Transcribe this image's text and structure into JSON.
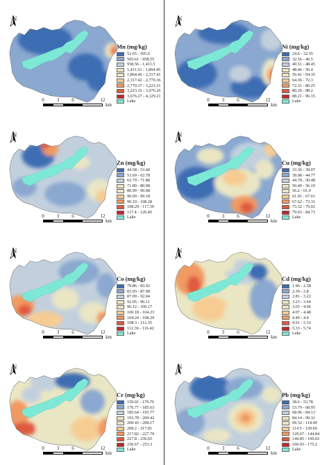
{
  "north_label": "N",
  "scale": {
    "ticks": [
      "0",
      "3",
      "6",
      "12"
    ],
    "unit": "km"
  },
  "lake_label": "Lake",
  "colors": {
    "lake": "#7ee8d6",
    "ramp": [
      "#3d6db3",
      "#8aa8d0",
      "#c2d0de",
      "#eae6c4",
      "#f6cc93",
      "#f19a62",
      "#df5a40",
      "#c1272d"
    ]
  },
  "panels": [
    {
      "id": "mn",
      "title": "Mn (mg/kg)",
      "classes": [
        "52.65 - 505.6",
        "505.61 - 958.55",
        "958.56 - 1,411.5",
        "1,411.51 - 1,864.45",
        "1,864.46 - 2,317.41",
        "2,317.42 - 2,770.36",
        "2,770.37 - 3,223.31",
        "3,223.32 - 3,676.26",
        "3,676.27 - 4,129.21"
      ]
    },
    {
      "id": "ni",
      "title": "Ni (mg/kg)",
      "classes": [
        "24.6 - 32.55",
        "32.56 - 40.5",
        "40.51 - 48.45",
        "48.46 - 56.4",
        "56.41 - 64.35",
        "64.36 - 72.3",
        "72.31 - 80.25",
        "80.26 - 88.2",
        "88.21 - 96.15"
      ]
    },
    {
      "id": "zn",
      "title": "Zn (mg/kg)",
      "classes": [
        "44.58 - 53.68",
        "53.69 - 62.78",
        "62.79 - 71.88",
        "71.89 - 80.98",
        "80.99 - 90.08",
        "90.09 - 99.18",
        "99.19 - 108.28",
        "108.29 - 117.39",
        "117.4 - 126.49"
      ]
    },
    {
      "id": "cu",
      "title": "Cu (mg/kg)",
      "classes": [
        "33.36 - 39.07",
        "39.08 - 44.77",
        "44.78 - 50.48",
        "50.49 - 56.19",
        "56.2 - 61.9",
        "61.91 - 67.61",
        "67.62 - 73.31",
        "73.32 - 79.02",
        "79.03 - 84.73"
      ]
    },
    {
      "id": "co",
      "title": "Co (mg/kg)",
      "classes": [
        "79.86 - 83.92",
        "83.93 - 87.98",
        "87.99 - 92.04",
        "92.05 - 96.11",
        "96.12 - 100.17",
        "100.18 - 104.23",
        "104.24 - 108.29",
        "108.3 - 112.35",
        "112.36 - 116.42"
      ]
    },
    {
      "id": "cd",
      "title": "Cd (mg/kg)",
      "classes": [
        "1.96 - 2.38",
        "2.39 - 2.8",
        "2.81 - 3.22",
        "3.23 - 3.64",
        "3.65 - 4.06",
        "4.07 - 4.48",
        "4.49 - 4.9",
        "4.91 - 5.32",
        "5.33 - 5.74"
      ]
    },
    {
      "id": "cr",
      "title": "Cr (mg/kg)",
      "classes": [
        "159.01 - 176.76",
        "176.77 - 185.63",
        "185.64 - 193.77",
        "193.78 - 200.42",
        "200.43 - 208.17",
        "208.2 - 217.81",
        "217.82 - 227.79",
        "227.8 - 236.65",
        "236.67 - 253.3"
      ]
    },
    {
      "id": "pb",
      "title": "Pb (mg/kg)",
      "classes": [
        "38.6 - 53.78",
        "53.79 - 68.95",
        "68.96 - 84.13",
        "84.14 - 99.31",
        "99.32 - 114.49",
        "114.5 - 129.66",
        "129.67 - 144.84",
        "144.85 - 160.02",
        "160.03 - 175.2"
      ]
    }
  ]
}
